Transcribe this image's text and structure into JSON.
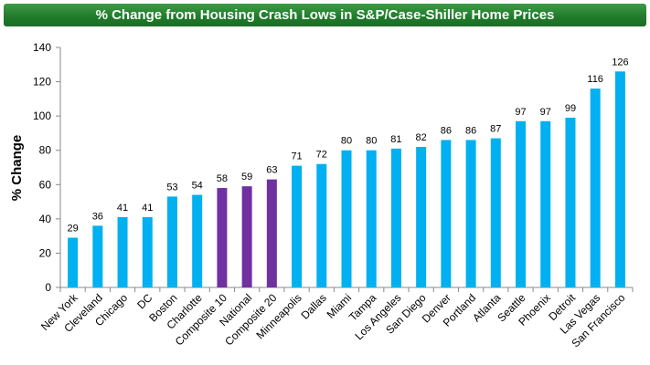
{
  "chart_data": {
    "type": "bar",
    "title": "% Change from Housing Crash Lows in S&P/Case-Shiller Home Prices",
    "xlabel": "",
    "ylabel": "% Change",
    "ylim": [
      0,
      140
    ],
    "yticks": [
      0,
      20,
      40,
      60,
      80,
      100,
      120,
      140
    ],
    "ytick_labels": [
      "0",
      "20",
      "40",
      "60",
      "80",
      "100",
      "120",
      "140"
    ],
    "grid": false,
    "legend": "none",
    "categories": [
      "New York",
      "Cleveland",
      "Chicago",
      "DC",
      "Boston",
      "Charlotte",
      "Composite 10",
      "National",
      "Composite 20",
      "Minneapolis",
      "Dallas",
      "Miami",
      "Tampa",
      "Los Angeles",
      "San Diego",
      "Denver",
      "Portland",
      "Atlanta",
      "Seattle",
      "Phoenix",
      "Detroit",
      "Las Vegas",
      "San Francisco"
    ],
    "values": [
      29,
      36,
      41,
      41,
      53,
      54,
      58,
      59,
      63,
      71,
      72,
      80,
      80,
      81,
      82,
      86,
      86,
      87,
      97,
      97,
      99,
      116,
      126
    ],
    "data_labels": [
      "29",
      "36",
      "41",
      "41",
      "53",
      "54",
      "58",
      "59",
      "63",
      "71",
      "72",
      "80",
      "80",
      "81",
      "82",
      "86",
      "86",
      "87",
      "97",
      "97",
      "99",
      "116",
      "126"
    ],
    "colors": {
      "default": "#00b0f0",
      "highlight": "#7030a0",
      "highlighted_categories": [
        "Composite 10",
        "National",
        "Composite 20"
      ],
      "title_bar": "#2e8b3a"
    }
  }
}
